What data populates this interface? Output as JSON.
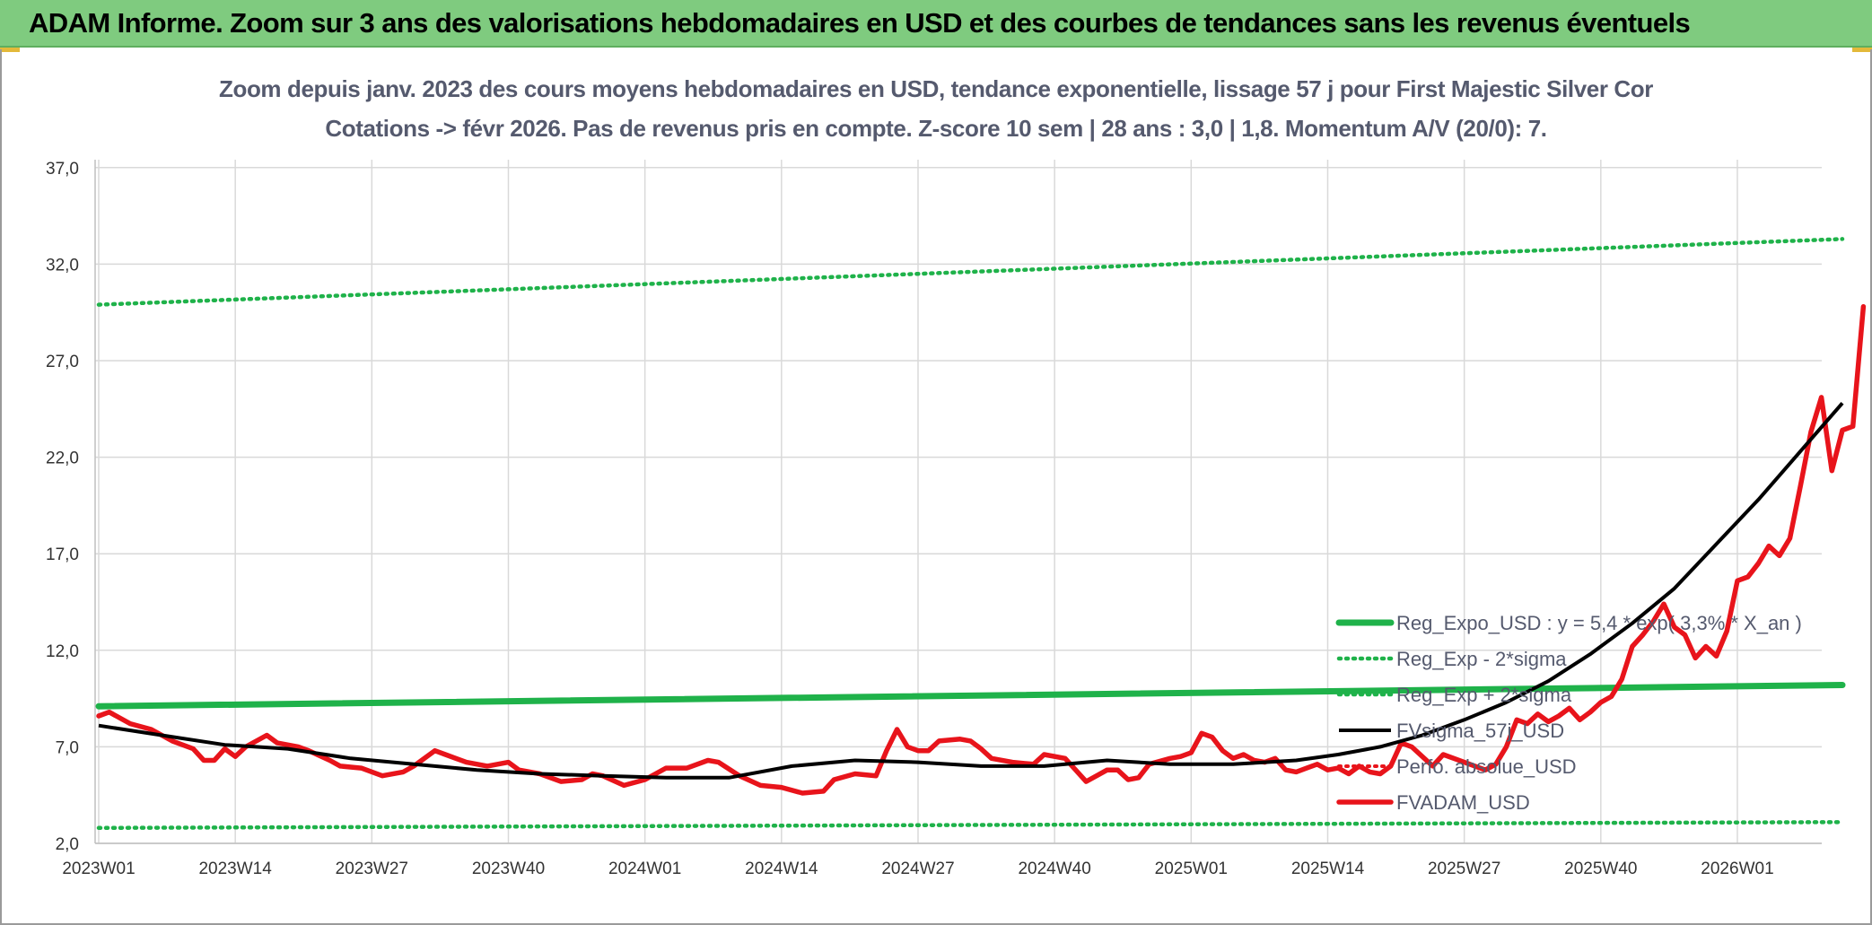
{
  "banner": {
    "title": "ADAM Informe. Zoom sur 3 ans des valorisations hebdomadaires en USD et des courbes de tendances sans les revenus éventuels"
  },
  "colors": {
    "banner_bg": "#7fcb7f",
    "trend": "#1fb24a",
    "band": "#1fb24a",
    "smooth": "#000000",
    "price": "#e8141b",
    "perf": "#e8141b"
  },
  "chart_data": {
    "type": "line",
    "title": "Zoom depuis janv. 2023 des cours moyens hebdomadaires en USD, tendance exponentielle, lissage 57 j pour First Majestic Silver Cor",
    "subtitle": "Cotations -> févr 2026. Pas de revenus pris en compte. Z-score 10 sem | 28 ans : 3,0 | 1,8. Momentum A/V (20/0): 7.",
    "ylim": [
      2.0,
      39.0
    ],
    "y_ticks": [
      "2,0",
      "7,0",
      "12,0",
      "17,0",
      "22,0",
      "27,0",
      "32,0",
      "37,0"
    ],
    "y_tick_values": [
      2,
      7,
      12,
      17,
      22,
      27,
      32,
      37
    ],
    "x_range": [
      0,
      166
    ],
    "x_ticks": [
      "2023W01",
      "2023W14",
      "2023W27",
      "2023W40",
      "2024W01",
      "2024W14",
      "2024W27",
      "2024W40",
      "2025W01",
      "2025W14",
      "2025W27",
      "2025W40",
      "2026W01"
    ],
    "x_tick_index": [
      0,
      13,
      26,
      39,
      52,
      65,
      78,
      91,
      104,
      117,
      130,
      143,
      156
    ],
    "grid": true,
    "legend_position": "bottom-right",
    "series": [
      {
        "name": "Reg_Expo_USD : y = 5,4 * exp( 3,3% *  X_an )",
        "style": "solid-thick",
        "points": [
          [
            0,
            9.1
          ],
          [
            166,
            10.2
          ]
        ]
      },
      {
        "name": "Reg_Exp - 2*sigma",
        "style": "dotted",
        "points": [
          [
            0,
            2.8
          ],
          [
            166,
            3.1
          ]
        ]
      },
      {
        "name": "Reg_Exp + 2*sigma",
        "style": "dotted",
        "points": [
          [
            0,
            29.9
          ],
          [
            166,
            33.3
          ]
        ]
      },
      {
        "name": "FVsigma_57j_USD",
        "style": "solid-black",
        "points": [
          [
            0,
            8.1
          ],
          [
            6,
            7.6
          ],
          [
            12,
            7.1
          ],
          [
            18,
            6.9
          ],
          [
            24,
            6.4
          ],
          [
            30,
            6.1
          ],
          [
            36,
            5.8
          ],
          [
            42,
            5.6
          ],
          [
            48,
            5.5
          ],
          [
            54,
            5.4
          ],
          [
            60,
            5.4
          ],
          [
            66,
            6.0
          ],
          [
            72,
            6.3
          ],
          [
            78,
            6.2
          ],
          [
            84,
            6.0
          ],
          [
            90,
            6.0
          ],
          [
            96,
            6.3
          ],
          [
            102,
            6.1
          ],
          [
            108,
            6.1
          ],
          [
            114,
            6.3
          ],
          [
            118,
            6.6
          ],
          [
            122,
            7.0
          ],
          [
            126,
            7.6
          ],
          [
            130,
            8.4
          ],
          [
            134,
            9.3
          ],
          [
            138,
            10.4
          ],
          [
            142,
            11.8
          ],
          [
            146,
            13.4
          ],
          [
            150,
            15.2
          ],
          [
            154,
            17.5
          ],
          [
            158,
            19.8
          ],
          [
            162,
            22.3
          ],
          [
            166,
            24.8
          ]
        ]
      },
      {
        "name": "Perfo. absolue_USD",
        "style": "dotted-red",
        "points": []
      },
      {
        "name": "FVADAM_USD",
        "style": "solid-red",
        "points": [
          [
            0,
            8.6
          ],
          [
            1,
            8.8
          ],
          [
            3,
            8.2
          ],
          [
            5,
            7.9
          ],
          [
            7,
            7.3
          ],
          [
            9,
            6.9
          ],
          [
            10,
            6.3
          ],
          [
            11,
            6.3
          ],
          [
            12,
            6.9
          ],
          [
            13,
            6.5
          ],
          [
            14,
            7.0
          ],
          [
            16,
            7.6
          ],
          [
            17,
            7.2
          ],
          [
            19,
            7.0
          ],
          [
            20,
            6.8
          ],
          [
            22,
            6.3
          ],
          [
            23,
            6.0
          ],
          [
            25,
            5.9
          ],
          [
            27,
            5.5
          ],
          [
            29,
            5.7
          ],
          [
            30,
            6.0
          ],
          [
            32,
            6.8
          ],
          [
            33,
            6.6
          ],
          [
            35,
            6.2
          ],
          [
            37,
            6.0
          ],
          [
            39,
            6.2
          ],
          [
            40,
            5.8
          ],
          [
            42,
            5.6
          ],
          [
            44,
            5.2
          ],
          [
            46,
            5.3
          ],
          [
            47,
            5.6
          ],
          [
            48,
            5.5
          ],
          [
            50,
            5.0
          ],
          [
            52,
            5.3
          ],
          [
            54,
            5.9
          ],
          [
            56,
            5.9
          ],
          [
            58,
            6.3
          ],
          [
            59,
            6.2
          ],
          [
            61,
            5.5
          ],
          [
            63,
            5.0
          ],
          [
            65,
            4.9
          ],
          [
            67,
            4.6
          ],
          [
            69,
            4.7
          ],
          [
            70,
            5.3
          ],
          [
            72,
            5.6
          ],
          [
            74,
            5.5
          ],
          [
            75,
            6.8
          ],
          [
            76,
            7.9
          ],
          [
            77,
            7.0
          ],
          [
            78,
            6.8
          ],
          [
            79,
            6.8
          ],
          [
            80,
            7.3
          ],
          [
            82,
            7.4
          ],
          [
            83,
            7.3
          ],
          [
            84,
            6.9
          ],
          [
            85,
            6.4
          ],
          [
            87,
            6.2
          ],
          [
            89,
            6.1
          ],
          [
            90,
            6.6
          ],
          [
            92,
            6.4
          ],
          [
            93,
            5.8
          ],
          [
            94,
            5.2
          ],
          [
            96,
            5.8
          ],
          [
            97,
            5.8
          ],
          [
            98,
            5.3
          ],
          [
            99,
            5.4
          ],
          [
            100,
            6.1
          ],
          [
            102,
            6.4
          ],
          [
            103,
            6.5
          ],
          [
            104,
            6.7
          ],
          [
            105,
            7.7
          ],
          [
            106,
            7.5
          ],
          [
            107,
            6.8
          ],
          [
            108,
            6.4
          ],
          [
            109,
            6.6
          ],
          [
            110,
            6.3
          ],
          [
            111,
            6.2
          ],
          [
            112,
            6.4
          ],
          [
            113,
            5.8
          ],
          [
            114,
            5.7
          ],
          [
            115,
            5.9
          ],
          [
            116,
            6.1
          ],
          [
            117,
            5.8
          ],
          [
            118,
            5.9
          ],
          [
            119,
            5.6
          ],
          [
            120,
            6.0
          ],
          [
            121,
            5.7
          ],
          [
            122,
            5.6
          ],
          [
            123,
            6.0
          ],
          [
            124,
            7.2
          ],
          [
            125,
            7.0
          ],
          [
            127,
            6.0
          ],
          [
            128,
            6.6
          ],
          [
            130,
            6.2
          ],
          [
            132,
            5.8
          ],
          [
            133,
            6.1
          ],
          [
            134,
            7.0
          ],
          [
            135,
            8.4
          ],
          [
            136,
            8.2
          ],
          [
            137,
            8.7
          ],
          [
            138,
            8.3
          ],
          [
            139,
            8.6
          ],
          [
            140,
            9.0
          ],
          [
            141,
            8.4
          ],
          [
            142,
            8.8
          ],
          [
            143,
            9.3
          ],
          [
            144,
            9.6
          ],
          [
            145,
            10.5
          ],
          [
            146,
            12.2
          ],
          [
            147,
            12.8
          ],
          [
            148,
            13.5
          ],
          [
            149,
            14.4
          ],
          [
            150,
            13.2
          ],
          [
            151,
            12.8
          ],
          [
            152,
            11.6
          ],
          [
            153,
            12.2
          ],
          [
            154,
            11.7
          ],
          [
            155,
            13.0
          ],
          [
            156,
            15.6
          ],
          [
            157,
            15.8
          ],
          [
            158,
            16.5
          ],
          [
            159,
            17.4
          ],
          [
            160,
            16.9
          ],
          [
            161,
            17.8
          ],
          [
            162,
            20.5
          ],
          [
            163,
            23.3
          ],
          [
            164,
            25.1
          ],
          [
            165,
            21.3
          ],
          [
            166,
            23.4
          ],
          [
            167,
            23.6
          ],
          [
            168,
            29.8
          ]
        ]
      }
    ]
  }
}
